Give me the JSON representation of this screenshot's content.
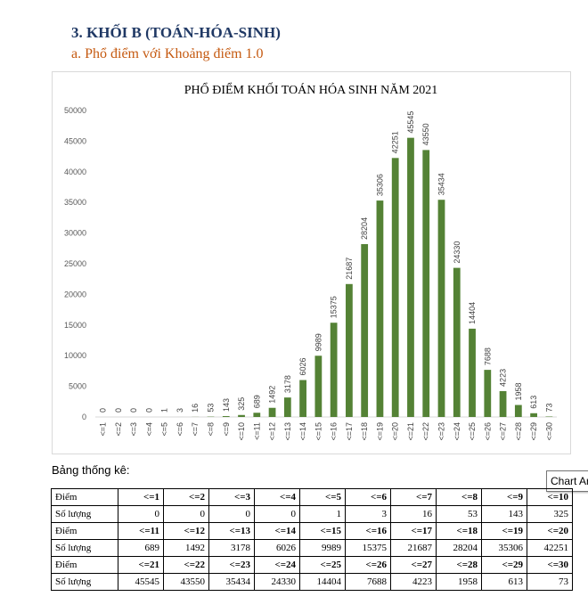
{
  "heading": "3.  KHỐI B (TOÁN-HÓA-SINH)",
  "subheading": "a.  Phổ điểm với Khoảng điểm 1.0",
  "stats_label": "Bảng thống kê:",
  "tooltip": "Chart Area",
  "table": {
    "row_label_score": "Điểm",
    "row_label_count": "Số lượng"
  },
  "colors": {
    "bar": "#548235",
    "heading": "#1f3864",
    "subheading": "#c55a11"
  },
  "chart_data": {
    "type": "bar",
    "title": "PHỔ ĐIỂM KHỐI TOÁN HÓA SINH NĂM 2021",
    "categories": [
      "<=1",
      "<=2",
      "<=3",
      "<=4",
      "<=5",
      "<=6",
      "<=7",
      "<=8",
      "<=9",
      "<=10",
      "<=11",
      "<=12",
      "<=13",
      "<=14",
      "<=15",
      "<=16",
      "<=17",
      "<=18",
      "<=19",
      "<=20",
      "<=21",
      "<=22",
      "<=23",
      "<=24",
      "<=25",
      "<=26",
      "<=27",
      "<=28",
      "<=29",
      "<=30"
    ],
    "values": [
      0,
      0,
      0,
      0,
      1,
      3,
      16,
      53,
      143,
      325,
      689,
      1492,
      3178,
      6026,
      9989,
      15375,
      21687,
      28204,
      35306,
      42251,
      45545,
      43550,
      35434,
      24330,
      14404,
      7688,
      4223,
      1958,
      613,
      73
    ],
    "yticks": [
      "0",
      "5000",
      "10000",
      "15000",
      "20000",
      "25000",
      "30000",
      "35000",
      "40000",
      "45000",
      "50000"
    ],
    "ylim": [
      0,
      50000
    ],
    "xlabel": "",
    "ylabel": "",
    "grid": false,
    "legend": "none"
  }
}
